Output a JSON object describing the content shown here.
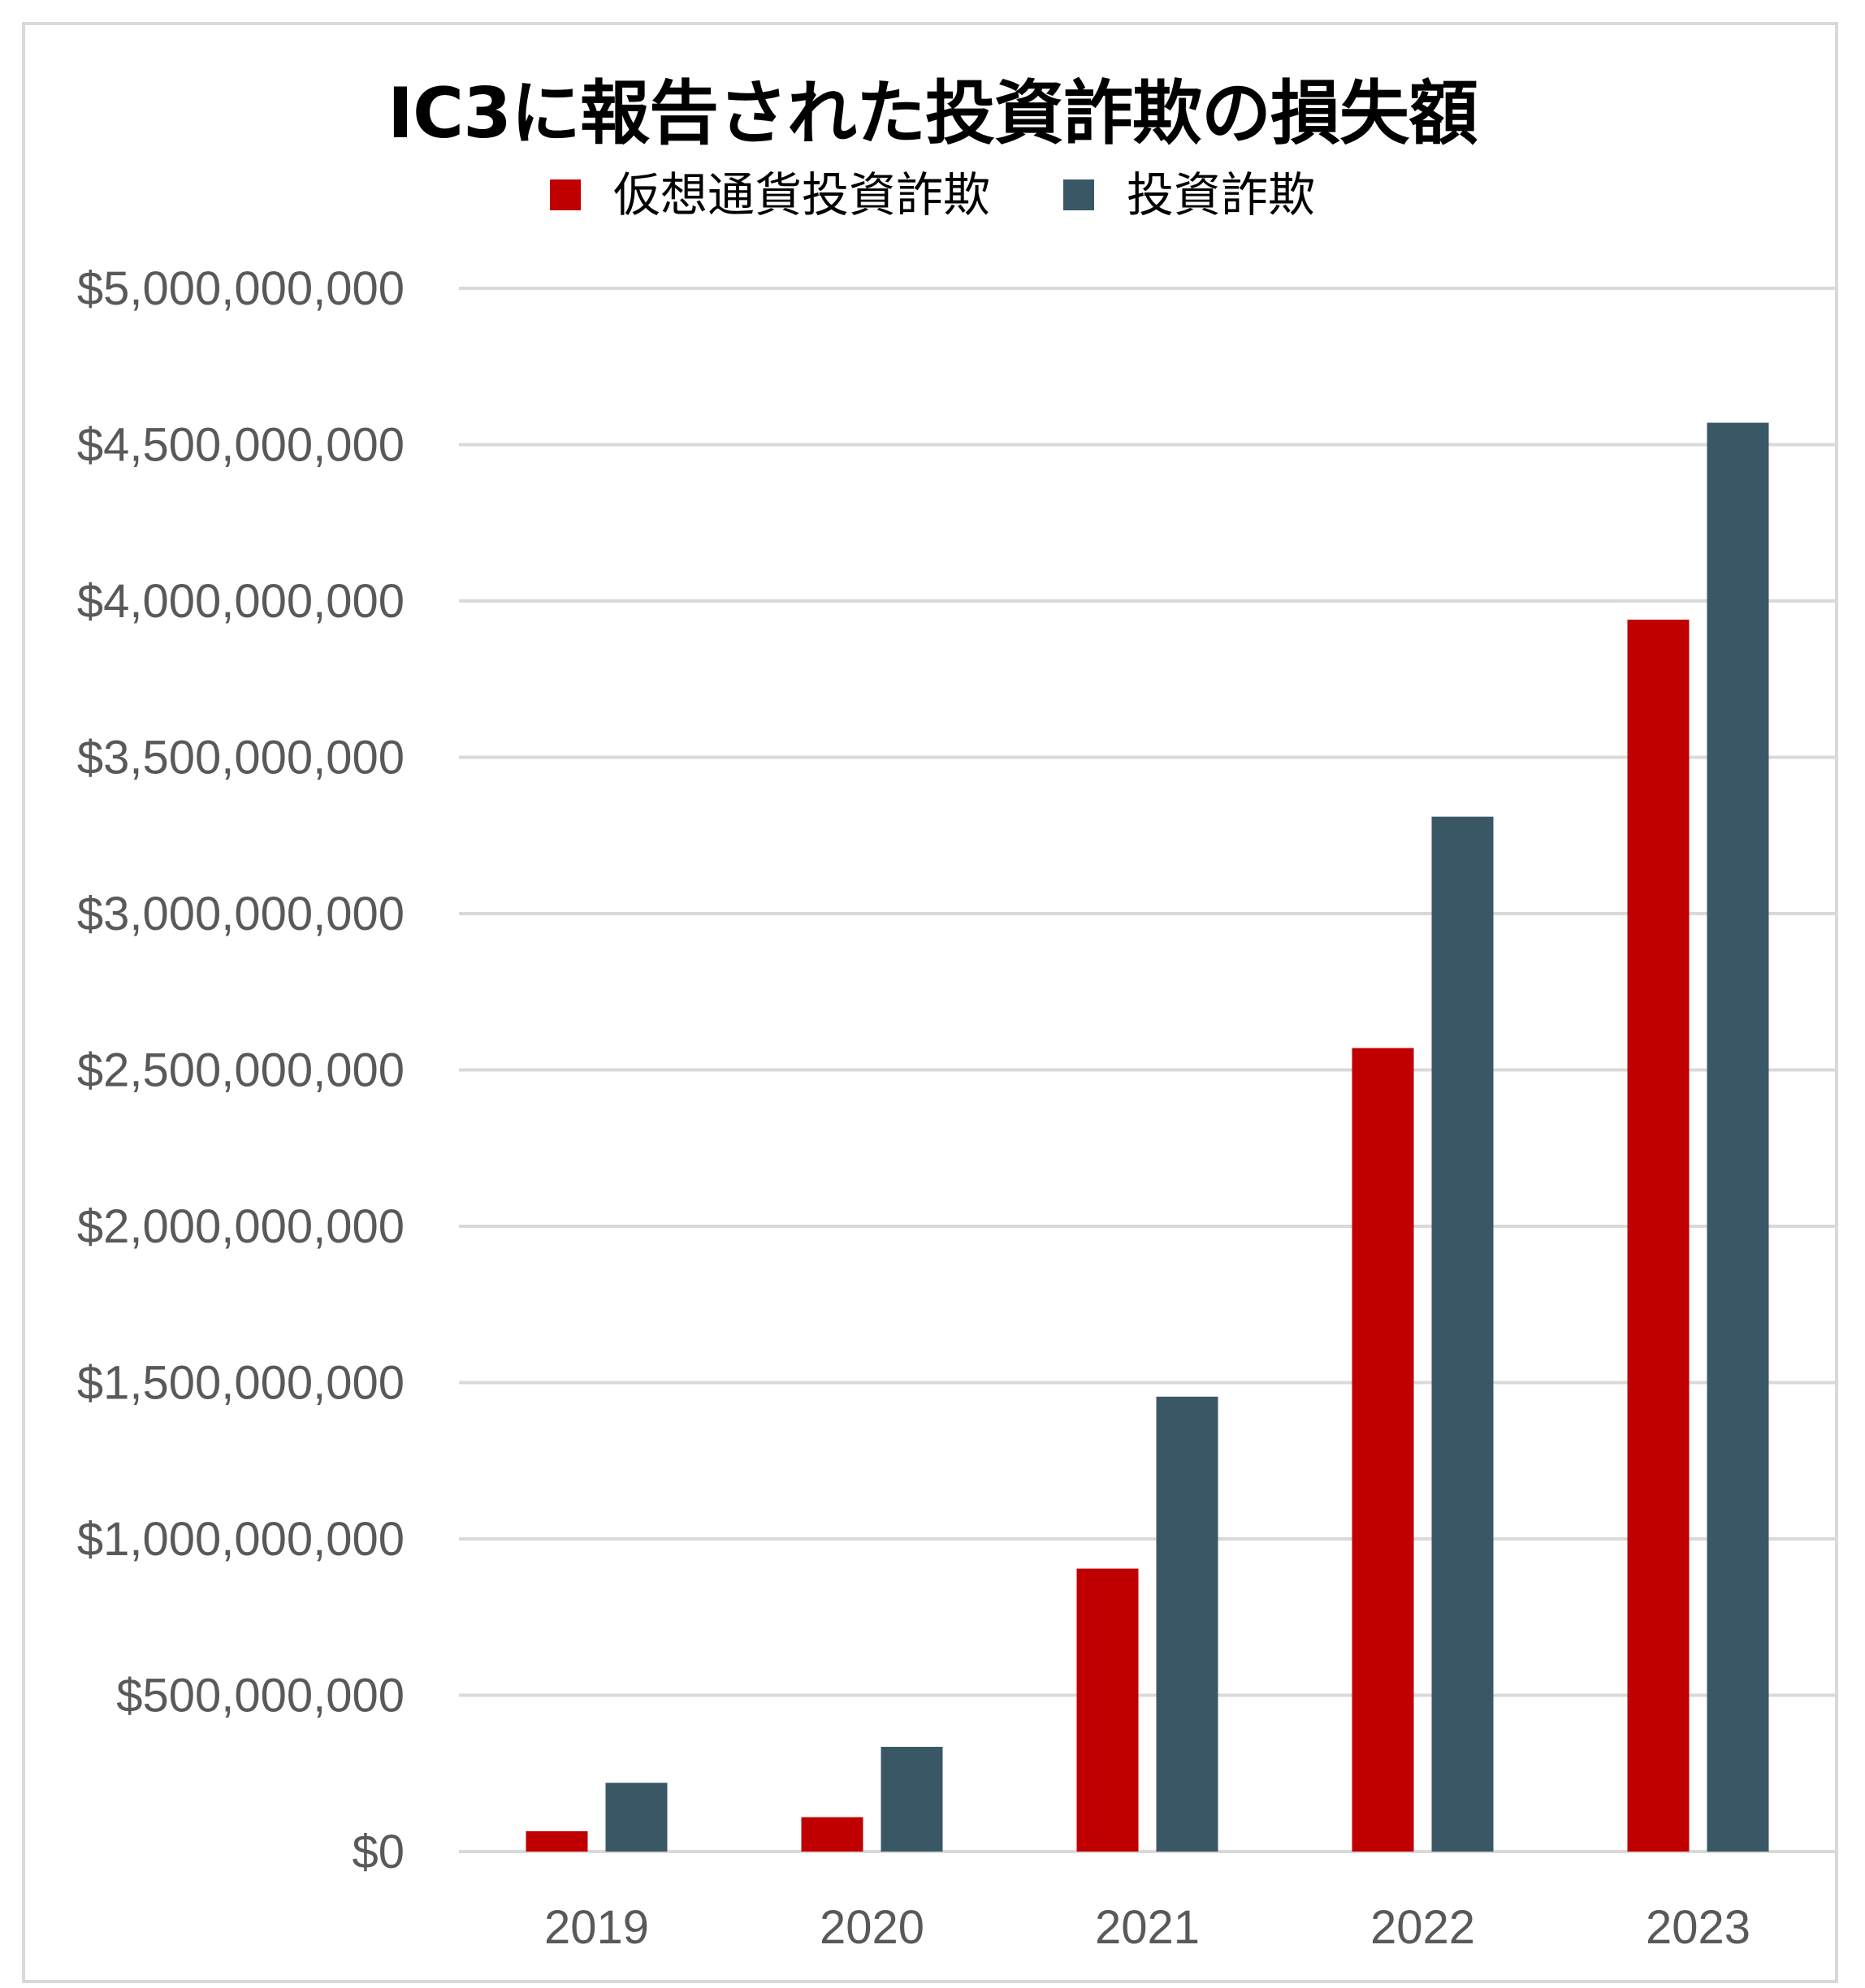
{
  "chart_data": {
    "type": "bar",
    "title": "IC3に報告された投資詐欺の損失額",
    "categories": [
      "2019",
      "2020",
      "2021",
      "2022",
      "2023"
    ],
    "series": [
      {
        "name": "仮想通貨投資詐欺",
        "color": "#c00000",
        "values": [
          65000000,
          110000000,
          905000000,
          2570000000,
          3940000000
        ]
      },
      {
        "name": "投資詐欺",
        "color": "#3a5766",
        "values": [
          220000000,
          335000000,
          1455000000,
          3310000000,
          4570000000
        ]
      }
    ],
    "ylim": [
      0,
      5000000000
    ],
    "yticks": [
      {
        "value": 0,
        "label": "$0"
      },
      {
        "value": 500000000,
        "label": "$500,000,000"
      },
      {
        "value": 1000000000,
        "label": "$1,000,000,000"
      },
      {
        "value": 1500000000,
        "label": "$1,500,000,000"
      },
      {
        "value": 2000000000,
        "label": "$2,000,000,000"
      },
      {
        "value": 2500000000,
        "label": "$2,500,000,000"
      },
      {
        "value": 3000000000,
        "label": "$3,000,000,000"
      },
      {
        "value": 3500000000,
        "label": "$3,500,000,000"
      },
      {
        "value": 4000000000,
        "label": "$4,000,000,000"
      },
      {
        "value": 4500000000,
        "label": "$4,500,000,000"
      },
      {
        "value": 5000000000,
        "label": "$5,000,000,000"
      }
    ],
    "grid": true,
    "legend_position": "top-center"
  }
}
